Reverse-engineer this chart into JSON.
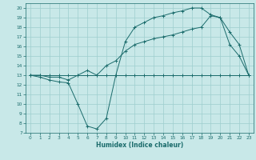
{
  "x": [
    0,
    1,
    2,
    3,
    4,
    5,
    6,
    7,
    8,
    9,
    10,
    11,
    12,
    13,
    14,
    15,
    16,
    17,
    18,
    19,
    20,
    21,
    22,
    23
  ],
  "line_flat": [
    13,
    13,
    13,
    13,
    13,
    13,
    13,
    13,
    13,
    13,
    13,
    13,
    13,
    13,
    13,
    13,
    13,
    13,
    13,
    13,
    13,
    13,
    13,
    13
  ],
  "line_upper": [
    13,
    13,
    12.8,
    12.8,
    12.5,
    13,
    13.5,
    13,
    14,
    14.5,
    15.5,
    16.2,
    16.5,
    16.8,
    17,
    17.2,
    17.5,
    17.8,
    18,
    19.2,
    19,
    17.5,
    16.2,
    13
  ],
  "line_wavy": [
    13,
    12.8,
    12.5,
    12.3,
    12.2,
    10,
    7.7,
    7.4,
    8.5,
    13,
    16.5,
    18,
    18.5,
    19,
    19.2,
    19.5,
    19.7,
    20,
    20,
    19.3,
    19,
    16.2,
    15,
    13
  ],
  "color": "#1a6b6b",
  "bg_color": "#c8e8e8",
  "grid_color": "#9ecece",
  "xlabel": "Humidex (Indice chaleur)",
  "ylim": [
    7,
    20.5
  ],
  "xlim": [
    -0.5,
    23.5
  ],
  "yticks": [
    7,
    8,
    9,
    10,
    11,
    12,
    13,
    14,
    15,
    16,
    17,
    18,
    19,
    20
  ],
  "xticks": [
    0,
    1,
    2,
    3,
    4,
    5,
    6,
    7,
    8,
    9,
    10,
    11,
    12,
    13,
    14,
    15,
    16,
    17,
    18,
    19,
    20,
    21,
    22,
    23
  ]
}
